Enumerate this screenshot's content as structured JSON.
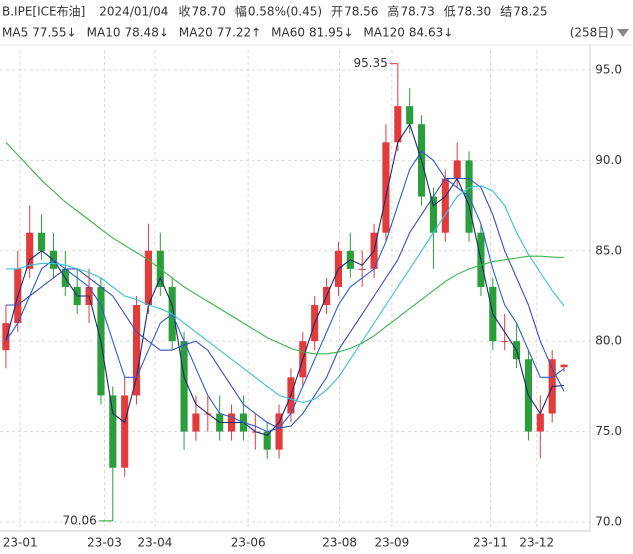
{
  "chart_data": {
    "type": "candlestick",
    "header": {
      "symbol": "B.IPE[ICE布油]",
      "date": "2024/01/04",
      "fields": [
        {
          "label": "收",
          "value": "78.70"
        },
        {
          "label": "幅",
          "value": "0.58%(0.45)"
        },
        {
          "label": "开",
          "value": "78.56"
        },
        {
          "label": "高",
          "value": "78.73"
        },
        {
          "label": "低",
          "value": "78.30"
        },
        {
          "label": "结",
          "value": "78.25"
        }
      ],
      "period": "(258日)"
    },
    "up_color": "#e23b3b",
    "down_color": "#2a9e3a",
    "open": [
      79.5,
      81,
      84,
      86,
      85,
      84,
      83,
      82,
      83,
      77,
      73,
      77,
      82,
      85,
      83,
      80,
      75,
      76,
      76,
      75,
      76,
      75,
      75,
      74,
      76,
      78,
      80,
      82,
      83,
      85,
      84,
      84,
      86,
      91,
      93,
      92,
      88,
      86,
      89,
      90,
      86,
      83,
      80,
      80,
      79,
      75,
      76,
      78.56
    ],
    "high": [
      82,
      85,
      87.5,
      87,
      86,
      85,
      84,
      84,
      83.5,
      77.5,
      78,
      82.5,
      86.5,
      86,
      83.5,
      80.5,
      77,
      77,
      77,
      76.5,
      77,
      76,
      75.5,
      76.5,
      78.5,
      80.5,
      82.5,
      83.5,
      85.5,
      86,
      85,
      86.5,
      92,
      95.35,
      94,
      92.5,
      88.5,
      89.5,
      91,
      90.5,
      86.5,
      83.5,
      81.5,
      81,
      79.5,
      77,
      79.5,
      78.73
    ],
    "low": [
      78.5,
      80.5,
      83.5,
      84.5,
      83.5,
      82.5,
      81.5,
      81,
      76.5,
      70.06,
      72.5,
      76.5,
      81.5,
      82.5,
      79.5,
      74,
      74.5,
      75,
      74.5,
      74.5,
      74.5,
      74,
      73.5,
      73.5,
      75.5,
      77.5,
      79.5,
      81.5,
      82.5,
      83.5,
      83,
      83.5,
      85.5,
      90.5,
      91.5,
      87.5,
      84,
      85.5,
      88.5,
      85.5,
      82.5,
      79.5,
      79.5,
      78.5,
      74.5,
      73.5,
      75.5,
      78.3
    ],
    "close": [
      81,
      84,
      86,
      85,
      84,
      83,
      82,
      83,
      77,
      73,
      77,
      82,
      85,
      83,
      80,
      75,
      76,
      76,
      75,
      76,
      75,
      75,
      74,
      76,
      78,
      80,
      82,
      83,
      85,
      84,
      84,
      86,
      91,
      93,
      92,
      88,
      86,
      89,
      90,
      86,
      83,
      80,
      80,
      79,
      75,
      76,
      79,
      78.7
    ],
    "series": [
      {
        "name": "MA5",
        "value_label": "77.55↓",
        "color": "#1f2a6b",
        "label_color": "#e23b3b",
        "values": [
          80,
          82.5,
          84.5,
          85,
          84.5,
          83.5,
          82.5,
          82.5,
          80,
          76,
          75.5,
          78,
          82,
          83.5,
          82,
          78,
          76.5,
          76,
          75.5,
          75.5,
          75.5,
          75,
          74.8,
          75.5,
          77,
          79,
          81,
          82.5,
          84,
          84.5,
          84.2,
          85,
          88,
          91,
          92,
          90,
          87.5,
          88,
          89,
          87.5,
          84.5,
          81.5,
          80.5,
          79.5,
          77,
          76,
          77.5,
          77.55
        ]
      },
      {
        "name": "MA10",
        "value_label": "78.48↓",
        "color": "#2f5fd0",
        "label_color": "#2f5fd0",
        "values": [
          80,
          81,
          82.5,
          84,
          84.5,
          84,
          83.5,
          83,
          82,
          80,
          78,
          78,
          79.5,
          81,
          81.5,
          80,
          78.5,
          77,
          76,
          75.8,
          75.5,
          75.3,
          75,
          75.2,
          76,
          77.5,
          79,
          80.5,
          82,
          83,
          83.5,
          84,
          85.5,
          87.5,
          89.5,
          90.5,
          90,
          89,
          88.5,
          88,
          86.5,
          84,
          82,
          81,
          79.5,
          78,
          78,
          78.48
        ]
      },
      {
        "name": "MA20",
        "value_label": "77.22↑",
        "color": "#3a4fb8",
        "label_color": "#2f5fd0",
        "values": [
          82,
          82,
          82.5,
          83,
          83.5,
          84,
          84,
          83.5,
          83,
          82.5,
          81.5,
          80.5,
          80,
          79.5,
          79.5,
          79.8,
          80,
          79.5,
          78.5,
          77.5,
          76.5,
          76,
          75.5,
          75.2,
          75.3,
          76,
          77,
          78,
          79.5,
          80.5,
          81.5,
          82.5,
          83.5,
          84.5,
          86,
          87,
          88,
          89,
          89,
          89,
          88.5,
          87,
          85,
          83.5,
          82,
          80,
          78.5,
          77.22
        ]
      },
      {
        "name": "MA60",
        "value_label": "81.95↓",
        "color": "#3cc0dc",
        "label_color": "#3cc0dc",
        "values": [
          84,
          84,
          84.2,
          84.3,
          84.3,
          84.2,
          84,
          83.8,
          83.5,
          83,
          82.5,
          82.3,
          82,
          81.8,
          81.5,
          81,
          80.5,
          80,
          79.5,
          79,
          78.5,
          78,
          77.5,
          77,
          76.8,
          76.6,
          76.8,
          77.3,
          78,
          79,
          80,
          81,
          82,
          83,
          84,
          85,
          86,
          87,
          88,
          88.5,
          88.6,
          88.3,
          87.5,
          86,
          84.8,
          83.8,
          82.8,
          81.95
        ]
      },
      {
        "name": "MA120",
        "value_label": "84.63↓",
        "color": "#3cb44b",
        "label_color": "#3cb44b",
        "values": [
          91,
          90.3,
          89.6,
          88.9,
          88.3,
          87.7,
          87.2,
          86.7,
          86.2,
          85.7,
          85.3,
          84.9,
          84.5,
          84,
          83.5,
          83,
          82.6,
          82.2,
          81.8,
          81.4,
          81,
          80.6,
          80.2,
          79.9,
          79.6,
          79.4,
          79.3,
          79.3,
          79.4,
          79.6,
          79.9,
          80.3,
          80.8,
          81.3,
          81.8,
          82.3,
          82.8,
          83.3,
          83.7,
          84,
          84.2,
          84.4,
          84.5,
          84.6,
          84.7,
          84.7,
          84.65,
          84.63
        ]
      }
    ],
    "annotations": [
      {
        "text": "95.35",
        "index": 33,
        "color": "#e23b3b"
      },
      {
        "text": "70.06",
        "index": 9,
        "color": "#2a9e3a"
      }
    ],
    "ylim": [
      69.5,
      96.2
    ],
    "yticks": [
      {
        "value": 70,
        "label": "70.0"
      },
      {
        "value": 75,
        "label": "75.0"
      },
      {
        "value": 80,
        "label": "80.0"
      },
      {
        "value": 85,
        "label": "85.0"
      },
      {
        "value": 90,
        "label": "90.0"
      },
      {
        "value": 95,
        "label": "95.0"
      }
    ],
    "xlim": [
      0,
      48
    ],
    "xticks": [
      {
        "value": 1.7,
        "label": "23-01"
      },
      {
        "value": 8.8,
        "label": "23-03"
      },
      {
        "value": 13.05,
        "label": "23-04"
      },
      {
        "value": 20.9,
        "label": "23-06"
      },
      {
        "value": 28.6,
        "label": "23-08"
      },
      {
        "value": 33,
        "label": "23-09"
      },
      {
        "value": 41.3,
        "label": "23-11"
      },
      {
        "value": 45.2,
        "label": "23-12"
      }
    ],
    "grid": true
  }
}
